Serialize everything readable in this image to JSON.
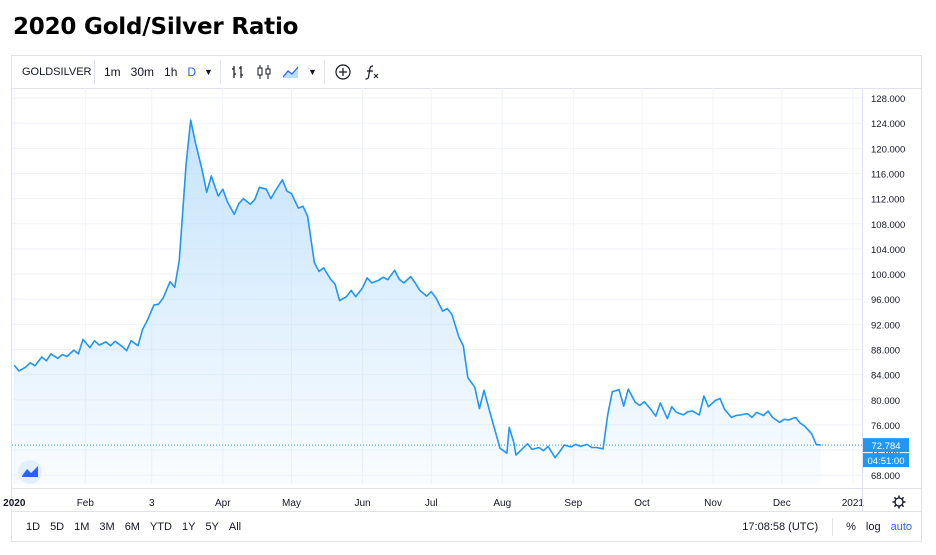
{
  "page": {
    "title": "2020 Gold/Silver Ratio"
  },
  "toolbar": {
    "symbol": "GOLDSILVER",
    "intervals": [
      "1m",
      "30m",
      "1h",
      "D"
    ],
    "active_interval": "D"
  },
  "bottom": {
    "ranges": [
      "1D",
      "5D",
      "1M",
      "3M",
      "6M",
      "YTD",
      "1Y",
      "5Y",
      "All"
    ],
    "time": "17:08:58 (UTC)",
    "opts": [
      "%",
      "log",
      "auto"
    ],
    "active_opt": "auto"
  },
  "price_label": {
    "value": "72.784",
    "countdown": "04:51:00"
  },
  "colors": {
    "line": "#2196f3",
    "fill": "#bbdefb",
    "accent": "#2962ff"
  },
  "chart_data": {
    "type": "area",
    "title": "2020 Gold/Silver Ratio",
    "x_tick_labels": [
      "2020",
      "Feb",
      "3",
      "Apr",
      "May",
      "Jun",
      "Jul",
      "Aug",
      "Sep",
      "Oct",
      "Nov",
      "Dec",
      "2021"
    ],
    "y_tick_labels": [
      "68.000",
      "72.000",
      "76.000",
      "80.000",
      "84.000",
      "88.000",
      "92.000",
      "96.000",
      "100.000",
      "104.000",
      "108.000",
      "112.000",
      "116.000",
      "120.000",
      "124.000",
      "128.000"
    ],
    "ylim": [
      66.6,
      129.6
    ],
    "xlim": [
      "2019-12-31",
      "2021-01-05"
    ],
    "grid": true,
    "last_value": 72.784,
    "series": [
      {
        "values": [
          [
            "2020-01-01",
            85.5
          ],
          [
            "2020-01-03",
            84.6
          ],
          [
            "2020-01-06",
            85.2
          ],
          [
            "2020-01-08",
            85.9
          ],
          [
            "2020-01-10",
            85.4
          ],
          [
            "2020-01-13",
            86.8
          ],
          [
            "2020-01-15",
            86.2
          ],
          [
            "2020-01-17",
            87.3
          ],
          [
            "2020-01-20",
            86.6
          ],
          [
            "2020-01-22",
            87.2
          ],
          [
            "2020-01-24",
            86.9
          ],
          [
            "2020-01-27",
            87.9
          ],
          [
            "2020-01-29",
            87.3
          ],
          [
            "2020-01-31",
            89.6
          ],
          [
            "2020-02-03",
            88.3
          ],
          [
            "2020-02-05",
            89.4
          ],
          [
            "2020-02-07",
            88.7
          ],
          [
            "2020-02-10",
            89.2
          ],
          [
            "2020-02-12",
            88.6
          ],
          [
            "2020-02-14",
            89.3
          ],
          [
            "2020-02-17",
            88.5
          ],
          [
            "2020-02-19",
            87.8
          ],
          [
            "2020-02-21",
            89.4
          ],
          [
            "2020-02-24",
            88.6
          ],
          [
            "2020-02-26",
            91.2
          ],
          [
            "2020-02-28",
            92.6
          ],
          [
            "2020-03-02",
            95.1
          ],
          [
            "2020-03-04",
            95.2
          ],
          [
            "2020-03-06",
            96.2
          ],
          [
            "2020-03-09",
            98.8
          ],
          [
            "2020-03-11",
            97.9
          ],
          [
            "2020-03-13",
            102.2
          ],
          [
            "2020-03-16",
            117.5
          ],
          [
            "2020-03-18",
            124.5
          ],
          [
            "2020-03-20",
            121.0
          ],
          [
            "2020-03-23",
            116.5
          ],
          [
            "2020-03-25",
            113.0
          ],
          [
            "2020-03-27",
            115.6
          ],
          [
            "2020-03-30",
            112.4
          ],
          [
            "2020-04-01",
            113.5
          ],
          [
            "2020-04-03",
            111.5
          ],
          [
            "2020-04-06",
            109.5
          ],
          [
            "2020-04-08",
            111.2
          ],
          [
            "2020-04-10",
            112.0
          ],
          [
            "2020-04-13",
            111.1
          ],
          [
            "2020-04-15",
            111.9
          ],
          [
            "2020-04-17",
            113.8
          ],
          [
            "2020-04-20",
            113.5
          ],
          [
            "2020-04-22",
            112.0
          ],
          [
            "2020-04-24",
            113.3
          ],
          [
            "2020-04-27",
            115.0
          ],
          [
            "2020-04-29",
            113.2
          ],
          [
            "2020-05-01",
            112.8
          ],
          [
            "2020-05-04",
            110.5
          ],
          [
            "2020-05-06",
            110.8
          ],
          [
            "2020-05-08",
            109.2
          ],
          [
            "2020-05-11",
            101.8
          ],
          [
            "2020-05-13",
            100.4
          ],
          [
            "2020-05-15",
            101.0
          ],
          [
            "2020-05-18",
            99.2
          ],
          [
            "2020-05-20",
            98.4
          ],
          [
            "2020-05-22",
            95.8
          ],
          [
            "2020-05-25",
            96.4
          ],
          [
            "2020-05-27",
            97.4
          ],
          [
            "2020-05-29",
            96.4
          ],
          [
            "2020-06-01",
            97.8
          ],
          [
            "2020-06-03",
            99.4
          ],
          [
            "2020-06-05",
            98.6
          ],
          [
            "2020-06-08",
            99.0
          ],
          [
            "2020-06-10",
            99.5
          ],
          [
            "2020-06-12",
            99.1
          ],
          [
            "2020-06-15",
            100.6
          ],
          [
            "2020-06-17",
            99.2
          ],
          [
            "2020-06-19",
            98.6
          ],
          [
            "2020-06-22",
            99.6
          ],
          [
            "2020-06-24",
            98.6
          ],
          [
            "2020-06-26",
            97.4
          ],
          [
            "2020-06-29",
            96.5
          ],
          [
            "2020-07-01",
            97.2
          ],
          [
            "2020-07-03",
            96.2
          ],
          [
            "2020-07-06",
            94.1
          ],
          [
            "2020-07-08",
            94.5
          ],
          [
            "2020-07-10",
            93.6
          ],
          [
            "2020-07-13",
            90.0
          ],
          [
            "2020-07-15",
            88.6
          ],
          [
            "2020-07-17",
            83.5
          ],
          [
            "2020-07-20",
            82.0
          ],
          [
            "2020-07-22",
            78.6
          ],
          [
            "2020-07-24",
            81.5
          ],
          [
            "2020-07-27",
            77.5
          ],
          [
            "2020-07-29",
            74.9
          ],
          [
            "2020-07-31",
            72.3
          ],
          [
            "2020-08-03",
            71.5
          ],
          [
            "2020-08-04",
            75.6
          ],
          [
            "2020-08-06",
            73.2
          ],
          [
            "2020-08-07",
            71.2
          ],
          [
            "2020-08-10",
            72.3
          ],
          [
            "2020-08-12",
            73.0
          ],
          [
            "2020-08-14",
            72.1
          ],
          [
            "2020-08-17",
            72.4
          ],
          [
            "2020-08-19",
            71.9
          ],
          [
            "2020-08-21",
            72.6
          ],
          [
            "2020-08-24",
            70.8
          ],
          [
            "2020-08-26",
            71.7
          ],
          [
            "2020-08-28",
            72.8
          ],
          [
            "2020-08-31",
            72.5
          ],
          [
            "2020-09-02",
            72.9
          ],
          [
            "2020-09-04",
            72.6
          ],
          [
            "2020-09-07",
            72.9
          ],
          [
            "2020-09-09",
            72.4
          ],
          [
            "2020-09-11",
            72.4
          ],
          [
            "2020-09-14",
            72.2
          ],
          [
            "2020-09-16",
            77.6
          ],
          [
            "2020-09-18",
            81.3
          ],
          [
            "2020-09-21",
            81.6
          ],
          [
            "2020-09-23",
            79.0
          ],
          [
            "2020-09-25",
            81.7
          ],
          [
            "2020-09-28",
            79.6
          ],
          [
            "2020-09-30",
            79.1
          ],
          [
            "2020-10-02",
            79.7
          ],
          [
            "2020-10-05",
            78.4
          ],
          [
            "2020-10-07",
            77.4
          ],
          [
            "2020-10-09",
            79.5
          ],
          [
            "2020-10-12",
            77.0
          ],
          [
            "2020-10-14",
            78.9
          ],
          [
            "2020-10-16",
            78.0
          ],
          [
            "2020-10-19",
            77.6
          ],
          [
            "2020-10-21",
            78.1
          ],
          [
            "2020-10-23",
            78.2
          ],
          [
            "2020-10-26",
            77.6
          ],
          [
            "2020-10-28",
            80.6
          ],
          [
            "2020-10-30",
            78.9
          ],
          [
            "2020-11-02",
            79.9
          ],
          [
            "2020-11-04",
            80.2
          ],
          [
            "2020-11-06",
            78.5
          ],
          [
            "2020-11-09",
            77.2
          ],
          [
            "2020-11-11",
            77.5
          ],
          [
            "2020-11-13",
            77.6
          ],
          [
            "2020-11-16",
            77.8
          ],
          [
            "2020-11-18",
            77.2
          ],
          [
            "2020-11-20",
            78.0
          ],
          [
            "2020-11-23",
            77.5
          ],
          [
            "2020-11-25",
            78.2
          ],
          [
            "2020-11-27",
            77.2
          ],
          [
            "2020-11-30",
            76.4
          ],
          [
            "2020-12-02",
            76.9
          ],
          [
            "2020-12-04",
            76.8
          ],
          [
            "2020-12-07",
            77.2
          ],
          [
            "2020-12-09",
            76.3
          ],
          [
            "2020-12-11",
            75.8
          ],
          [
            "2020-12-14",
            74.6
          ],
          [
            "2020-12-16",
            72.9
          ],
          [
            "2020-12-18",
            72.784
          ]
        ]
      }
    ]
  }
}
